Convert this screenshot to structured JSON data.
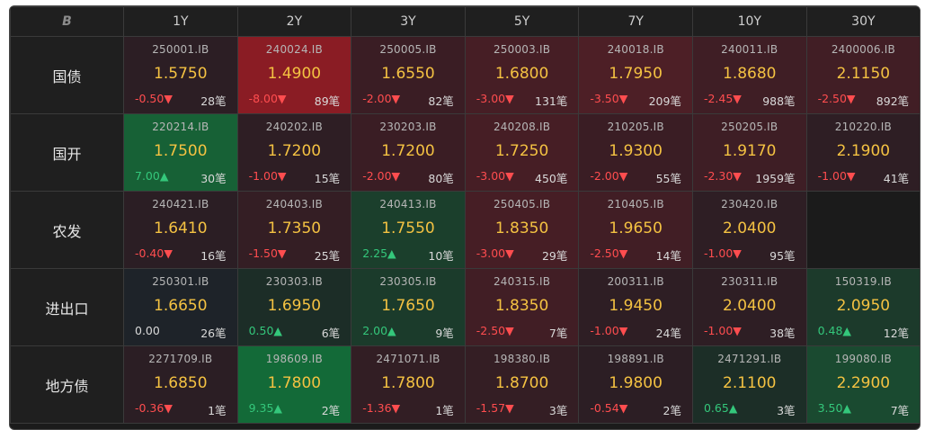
{
  "header": {
    "logo": "B",
    "tenors": [
      "1Y",
      "2Y",
      "3Y",
      "5Y",
      "7Y",
      "10Y",
      "30Y"
    ]
  },
  "colors": {
    "down_text": "#ff4d4f",
    "up_text": "#34c77b",
    "yield_text": "#f4c242"
  },
  "rows": [
    {
      "label": "国债",
      "cells": [
        {
          "code": "250001.IB",
          "yield": "1.5750",
          "change": "-0.50▼",
          "count": "28笔",
          "dir": "down",
          "bg": "#2c1e24"
        },
        {
          "code": "240024.IB",
          "yield": "1.4900",
          "change": "-8.00▼",
          "count": "89笔",
          "dir": "down",
          "bg": "#8a1c24"
        },
        {
          "code": "250005.IB",
          "yield": "1.6550",
          "change": "-2.00▼",
          "count": "82笔",
          "dir": "down",
          "bg": "#3a1d24"
        },
        {
          "code": "250003.IB",
          "yield": "1.6800",
          "change": "-3.00▼",
          "count": "131笔",
          "dir": "down",
          "bg": "#461e25"
        },
        {
          "code": "240018.IB",
          "yield": "1.7950",
          "change": "-3.50▼",
          "count": "209笔",
          "dir": "down",
          "bg": "#4d1f26"
        },
        {
          "code": "240011.IB",
          "yield": "1.8680",
          "change": "-2.45▼",
          "count": "988笔",
          "dir": "down",
          "bg": "#3f1e25"
        },
        {
          "code": "2400006.IB",
          "yield": "2.1150",
          "change": "-2.50▼",
          "count": "892笔",
          "dir": "down",
          "bg": "#411e25"
        }
      ]
    },
    {
      "label": "国开",
      "cells": [
        {
          "code": "220214.IB",
          "yield": "1.7500",
          "change": "7.00▲",
          "count": "30笔",
          "dir": "up",
          "bg": "#176136"
        },
        {
          "code": "240202.IB",
          "yield": "1.7200",
          "change": "-1.00▼",
          "count": "15笔",
          "dir": "down",
          "bg": "#2e1e24"
        },
        {
          "code": "230203.IB",
          "yield": "1.7200",
          "change": "-2.00▼",
          "count": "80笔",
          "dir": "down",
          "bg": "#3a1d24"
        },
        {
          "code": "240208.IB",
          "yield": "1.7250",
          "change": "-3.00▼",
          "count": "450笔",
          "dir": "down",
          "bg": "#461e25"
        },
        {
          "code": "210205.IB",
          "yield": "1.9300",
          "change": "-2.00▼",
          "count": "55笔",
          "dir": "down",
          "bg": "#3a1d24"
        },
        {
          "code": "250205.IB",
          "yield": "1.9170",
          "change": "-2.30▼",
          "count": "1959笔",
          "dir": "down",
          "bg": "#3e1e25"
        },
        {
          "code": "210220.IB",
          "yield": "2.1900",
          "change": "-1.00▼",
          "count": "41笔",
          "dir": "down",
          "bg": "#2e1e24"
        }
      ]
    },
    {
      "label": "农发",
      "cells": [
        {
          "code": "240421.IB",
          "yield": "1.6410",
          "change": "-0.40▼",
          "count": "16笔",
          "dir": "down",
          "bg": "#2b1e24"
        },
        {
          "code": "240403.IB",
          "yield": "1.7350",
          "change": "-1.50▼",
          "count": "25笔",
          "dir": "down",
          "bg": "#341e24"
        },
        {
          "code": "240413.IB",
          "yield": "1.7550",
          "change": "2.25▲",
          "count": "10笔",
          "dir": "up",
          "bg": "#1b3f2c"
        },
        {
          "code": "250405.IB",
          "yield": "1.8350",
          "change": "-3.00▼",
          "count": "29笔",
          "dir": "down",
          "bg": "#461e25"
        },
        {
          "code": "210405.IB",
          "yield": "1.9650",
          "change": "-2.50▼",
          "count": "14笔",
          "dir": "down",
          "bg": "#411e25"
        },
        {
          "code": "230420.IB",
          "yield": "2.0400",
          "change": "-1.00▼",
          "count": "95笔",
          "dir": "down",
          "bg": "#2e1e24"
        },
        null
      ]
    },
    {
      "label": "进出口",
      "cells": [
        {
          "code": "250301.IB",
          "yield": "1.6650",
          "change": "0.00",
          "count": "26笔",
          "dir": "flat",
          "bg": "#1e2329"
        },
        {
          "code": "230303.IB",
          "yield": "1.6950",
          "change": "0.50▲",
          "count": "6笔",
          "dir": "up",
          "bg": "#1c2d27"
        },
        {
          "code": "230305.IB",
          "yield": "1.7650",
          "change": "2.00▲",
          "count": "9笔",
          "dir": "up",
          "bg": "#1b3b2b"
        },
        {
          "code": "240315.IB",
          "yield": "1.8350",
          "change": "-2.50▼",
          "count": "7笔",
          "dir": "down",
          "bg": "#411e25"
        },
        {
          "code": "200311.IB",
          "yield": "1.9450",
          "change": "-1.00▼",
          "count": "24笔",
          "dir": "down",
          "bg": "#2e1e24"
        },
        {
          "code": "230311.IB",
          "yield": "2.0400",
          "change": "-1.00▼",
          "count": "38笔",
          "dir": "down",
          "bg": "#2e1e24"
        },
        {
          "code": "150319.IB",
          "yield": "2.0950",
          "change": "0.48▲",
          "count": "12笔",
          "dir": "up",
          "bg": "#1c3a2b"
        }
      ]
    },
    {
      "label": "地方债",
      "cells": [
        {
          "code": "2271709.IB",
          "yield": "1.6850",
          "change": "-0.36▼",
          "count": "1笔",
          "dir": "down",
          "bg": "#2b1e24"
        },
        {
          "code": "198609.IB",
          "yield": "1.7800",
          "change": "9.35▲",
          "count": "2笔",
          "dir": "up",
          "bg": "#136a38"
        },
        {
          "code": "2471071.IB",
          "yield": "1.7800",
          "change": "-1.36▼",
          "count": "1笔",
          "dir": "down",
          "bg": "#321e24"
        },
        {
          "code": "198380.IB",
          "yield": "1.8700",
          "change": "-1.57▼",
          "count": "3笔",
          "dir": "down",
          "bg": "#341e24"
        },
        {
          "code": "198891.IB",
          "yield": "1.9800",
          "change": "-0.54▼",
          "count": "2笔",
          "dir": "down",
          "bg": "#2c1e24"
        },
        {
          "code": "2471291.IB",
          "yield": "2.1100",
          "change": "0.65▲",
          "count": "3笔",
          "dir": "up",
          "bg": "#1c2e27"
        },
        {
          "code": "199080.IB",
          "yield": "2.2900",
          "change": "3.50▲",
          "count": "7笔",
          "dir": "up",
          "bg": "#1a4a30"
        }
      ]
    }
  ]
}
